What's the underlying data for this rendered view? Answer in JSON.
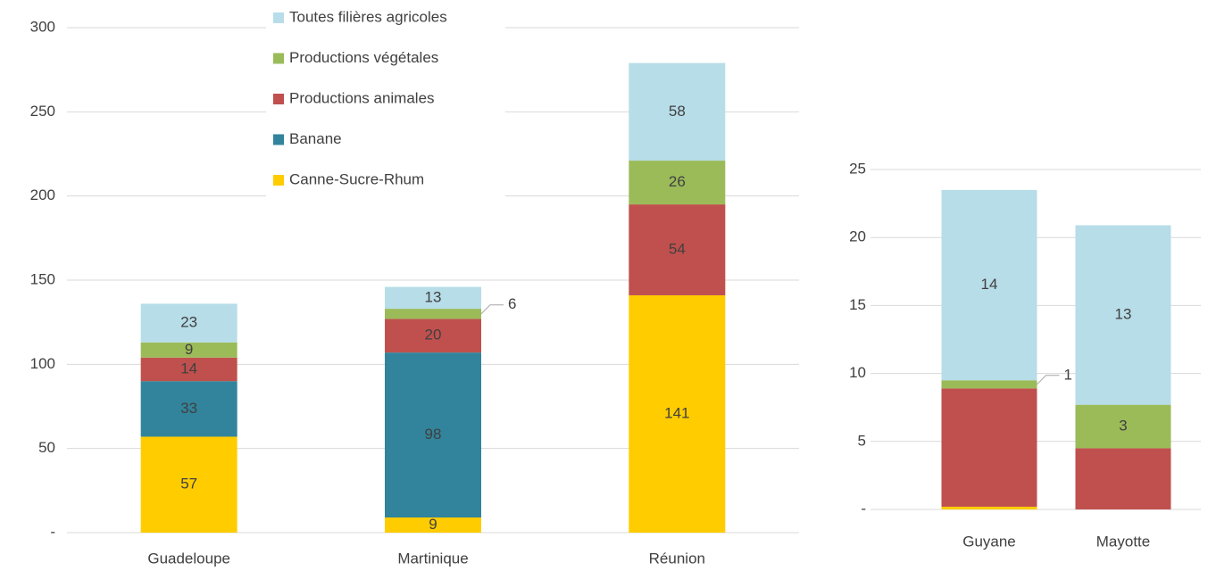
{
  "chart_data": [
    {
      "type": "stacked_bar",
      "categories": [
        "Guadeloupe",
        "Martinique",
        "Réunion"
      ],
      "series": [
        {
          "name": "Canne-Sucre-Rhum",
          "color": "#ffcc00",
          "values": [
            57,
            9,
            141
          ]
        },
        {
          "name": "Banane",
          "color": "#31849b",
          "values": [
            33,
            98,
            0
          ],
          "value_labels": [
            "33",
            "98",
            "-"
          ]
        },
        {
          "name": "Productions animales",
          "color": "#c0504d",
          "values": [
            14,
            20,
            54
          ]
        },
        {
          "name": "Productions végétales",
          "color": "#9bbb59",
          "values": [
            9,
            6,
            26
          ]
        },
        {
          "name": "Toutes filières agricoles",
          "color": "#b7dde8",
          "values": [
            23,
            13,
            58
          ]
        }
      ],
      "ylim": [
        0,
        300
      ],
      "yticks": [
        {
          "value": 0,
          "label": "-"
        },
        50,
        100,
        150,
        200,
        250,
        300
      ],
      "grid": true,
      "legend": "top"
    },
    {
      "type": "stacked_bar",
      "categories": [
        "Guyane",
        "Mayotte"
      ],
      "series": [
        {
          "color": "#ffcc00",
          "values": [
            0.2,
            0
          ],
          "value_labels": [
            "-",
            "-"
          ]
        },
        {
          "color": "#c0504d",
          "values": [
            8.7,
            4.5
          ],
          "value_labels": [
            null,
            null
          ]
        },
        {
          "color": "#9bbb59",
          "values": [
            0.6,
            3.2
          ],
          "value_labels": [
            "1",
            "3"
          ]
        },
        {
          "color": "#b7dde8",
          "values": [
            14,
            13.2
          ],
          "value_labels": [
            "14",
            "13"
          ]
        }
      ],
      "ylim": [
        0,
        25
      ],
      "yticks": [
        {
          "value": 0,
          "label": "-"
        },
        5,
        10,
        15,
        20,
        25
      ],
      "grid": true
    }
  ]
}
